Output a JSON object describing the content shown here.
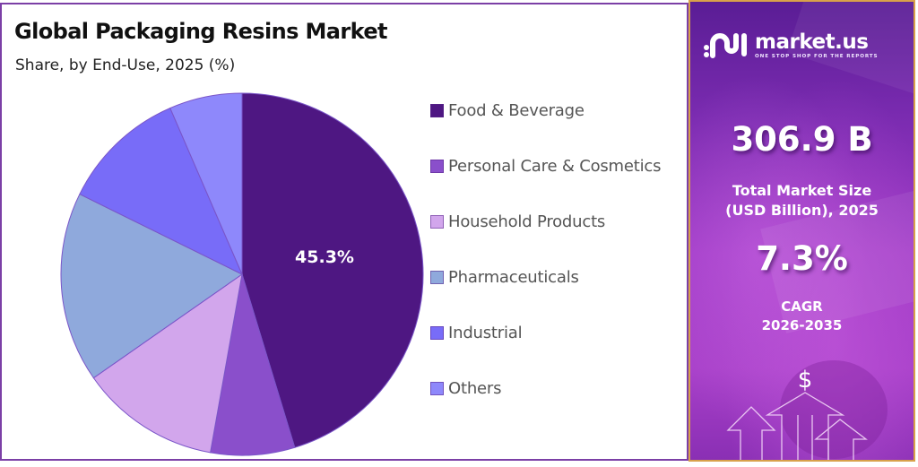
{
  "header": {
    "title": "Global Packaging Resins Market",
    "subtitle": "Share, by End-Use, 2025 (%)"
  },
  "legend": {
    "items": [
      {
        "label": "Food & Beverage",
        "color": "#4e1782"
      },
      {
        "label": "Personal Care & Cosmetics",
        "color": "#8a4fcb"
      },
      {
        "label": "Household Products",
        "color": "#d2a6ec"
      },
      {
        "label": "Pharmaceuticals",
        "color": "#8fa9dc"
      },
      {
        "label": "Industrial",
        "color": "#786cf8"
      },
      {
        "label": "Others",
        "color": "#8e88fb"
      }
    ]
  },
  "pie_label": "45.3%",
  "sidebar": {
    "brand": "market.us",
    "tagline": "ONE STOP SHOP FOR THE REPORTS",
    "market_size_value": "306.9 B",
    "market_size_label_line1": "Total Market Size",
    "market_size_label_line2": "(USD Billion), 2025",
    "cagr_value": "7.3%",
    "cagr_label_line1": "CAGR",
    "cagr_label_line2": "2026-2035",
    "dollar_symbol": "$"
  },
  "colors": {
    "border_left": "#7b3fa6",
    "border_right": "#d8a14a",
    "panel_purple": "#8a2fb4"
  },
  "chart_data": {
    "type": "pie",
    "title": "Global Packaging Resins Market",
    "subtitle": "Share, by End-Use, 2025 (%)",
    "categories": [
      "Food & Beverage",
      "Personal Care & Cosmetics",
      "Household Products",
      "Pharmaceuticals",
      "Industrial",
      "Others"
    ],
    "values": [
      45.3,
      7.5,
      12.5,
      17.0,
      11.2,
      6.5
    ],
    "colors": [
      "#4e1782",
      "#8a4fcb",
      "#d2a6ec",
      "#8fa9dc",
      "#786cf8",
      "#8e88fb"
    ],
    "data_labels": {
      "Food & Beverage": "45.3%"
    },
    "start_angle": "12 o'clock, clockwise",
    "legend_position": "right",
    "xlabel": "",
    "ylabel": ""
  }
}
